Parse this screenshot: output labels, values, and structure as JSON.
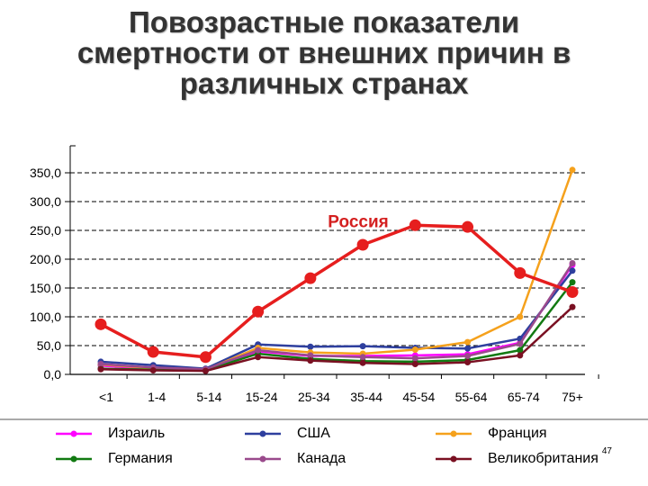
{
  "title_lines": [
    "Повозрастные показатели",
    "смертности от внешних причин в",
    "различных странах"
  ],
  "page_number": "47",
  "chart_data": {
    "type": "line",
    "title": "Повозрастные показатели смертности от внешних причин в различных странах",
    "categories": [
      "<1",
      "1-4",
      "5-14",
      "15-24",
      "25-34",
      "35-44",
      "45-54",
      "55-64",
      "65-74",
      "75+"
    ],
    "ylim": [
      0,
      350
    ],
    "yticks": [
      0,
      50,
      100,
      150,
      200,
      250,
      300,
      350
    ],
    "ytick_labels": [
      "0,0",
      "50,0",
      "100,0",
      "150,0",
      "200,0",
      "250,0",
      "300,0",
      "350,0"
    ],
    "grid": true,
    "legend_position": "bottom",
    "annotation": "Россия",
    "series": [
      {
        "name": "Израиль",
        "color": "#ff00ff",
        "in_legend": true,
        "values": [
          15,
          10,
          8,
          40,
          32,
          32,
          33,
          35,
          55,
          190
        ]
      },
      {
        "name": "США",
        "color": "#2e3f9e",
        "in_legend": true,
        "values": [
          22,
          16,
          10,
          52,
          48,
          49,
          46,
          45,
          62,
          180
        ]
      },
      {
        "name": "Франция",
        "color": "#f5a11c",
        "in_legend": true,
        "values": [
          17,
          11,
          8,
          46,
          38,
          36,
          43,
          56,
          100,
          355
        ]
      },
      {
        "name": "Германия",
        "color": "#127a12",
        "in_legend": true,
        "values": [
          10,
          8,
          7,
          36,
          27,
          23,
          22,
          25,
          42,
          160
        ]
      },
      {
        "name": "Канада",
        "color": "#9a4a8c",
        "in_legend": true,
        "values": [
          18,
          12,
          9,
          42,
          33,
          30,
          28,
          32,
          53,
          193
        ]
      },
      {
        "name": "Великобритания",
        "color": "#7a1022",
        "in_legend": true,
        "values": [
          9,
          7,
          6,
          30,
          24,
          20,
          18,
          21,
          33,
          117
        ]
      },
      {
        "name": "Россия",
        "color": "#e61e1e",
        "in_legend": false,
        "values": [
          87,
          39,
          30,
          109,
          167,
          225,
          259,
          256,
          176,
          143
        ]
      }
    ]
  }
}
